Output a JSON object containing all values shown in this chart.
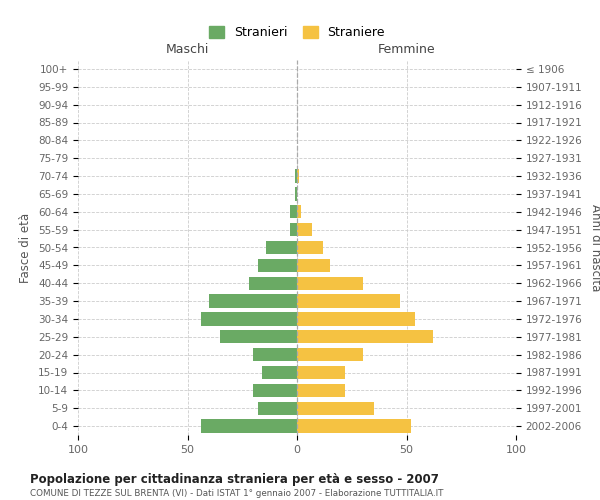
{
  "age_groups": [
    "100+",
    "95-99",
    "90-94",
    "85-89",
    "80-84",
    "75-79",
    "70-74",
    "65-69",
    "60-64",
    "55-59",
    "50-54",
    "45-49",
    "40-44",
    "35-39",
    "30-34",
    "25-29",
    "20-24",
    "15-19",
    "10-14",
    "5-9",
    "0-4"
  ],
  "birth_years": [
    "≤ 1906",
    "1907-1911",
    "1912-1916",
    "1917-1921",
    "1922-1926",
    "1927-1931",
    "1932-1936",
    "1937-1941",
    "1942-1946",
    "1947-1951",
    "1952-1956",
    "1957-1961",
    "1962-1966",
    "1967-1971",
    "1972-1976",
    "1977-1981",
    "1982-1986",
    "1987-1991",
    "1992-1996",
    "1997-2001",
    "2002-2006"
  ],
  "maschi": [
    0,
    0,
    0,
    0,
    0,
    0,
    1,
    1,
    3,
    3,
    14,
    18,
    22,
    40,
    44,
    35,
    20,
    16,
    20,
    18,
    44
  ],
  "femmine": [
    0,
    0,
    0,
    0,
    0,
    0,
    1,
    0,
    2,
    7,
    12,
    15,
    30,
    47,
    54,
    62,
    30,
    22,
    22,
    35,
    52
  ],
  "male_color": "#6aaa64",
  "female_color": "#f5c242",
  "title": "Popolazione per cittadinanza straniera per età e sesso - 2007",
  "subtitle": "COMUNE DI TEZZE SUL BRENTA (VI) - Dati ISTAT 1° gennaio 2007 - Elaborazione TUTTITALIA.IT",
  "xlabel_left": "Maschi",
  "xlabel_right": "Femmine",
  "ylabel_left": "Fasce di età",
  "ylabel_right": "Anni di nascita",
  "legend_male": "Stranieri",
  "legend_female": "Straniere",
  "xlim": 100,
  "background_color": "#ffffff",
  "grid_color": "#cccccc"
}
